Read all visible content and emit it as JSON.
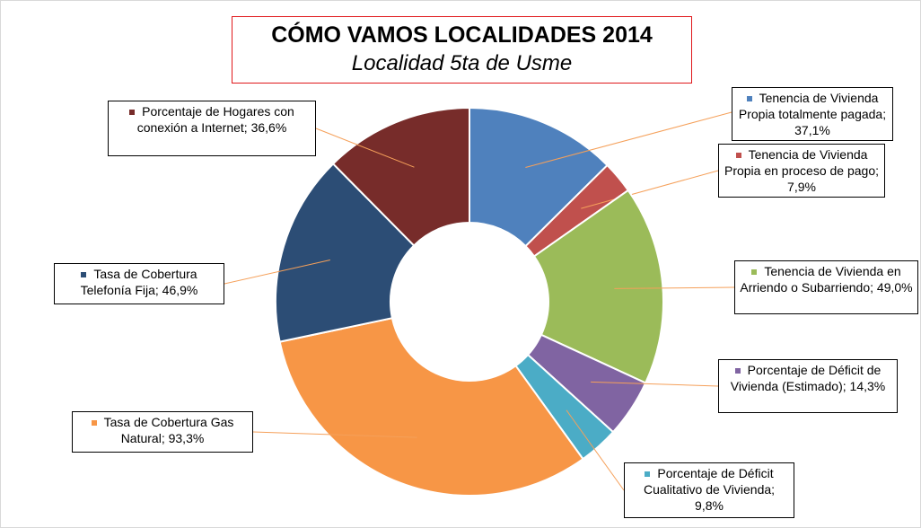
{
  "chart_data": {
    "type": "donut",
    "title": "CÓMO VAMOS LOCALIDADES 2014",
    "subtitle": "Localidad 5ta de Usme",
    "categories": [
      "Tenencia de Vivienda Propia totalmente pagada;",
      "Tenencia de Vivienda Propia en proceso de pago;",
      "Tenencia de Vivienda en Arriendo o Subarriendo;",
      "Porcentaje de Déficit de Vivienda (Estimado);",
      "Porcentaje de Déficit Cualitativo de Vivienda;",
      "Tasa de Cobertura Gas Natural;",
      "Tasa de Cobertura Telefonía Fija;",
      "Porcentaje de Hogares con conexión a Internet;"
    ],
    "values": [
      37.1,
      7.9,
      49.0,
      14.3,
      9.8,
      93.3,
      46.9,
      36.6
    ],
    "value_labels": [
      "37,1%",
      "7,9%",
      "49,0%",
      "14,3%",
      "9,8%",
      "93,3%",
      "46,9%",
      "36,6%"
    ],
    "colors": [
      "#4f81bd",
      "#c0504d",
      "#9bbb59",
      "#8064a2",
      "#4bacc6",
      "#f79646",
      "#2c4d75",
      "#772c2a"
    ]
  }
}
